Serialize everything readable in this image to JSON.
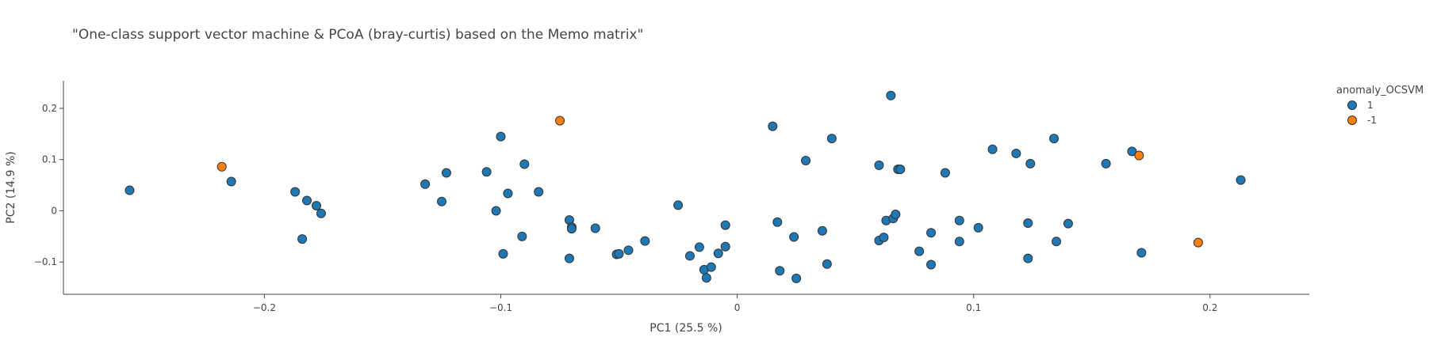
{
  "chart_data": {
    "type": "scatter",
    "title": "\"One-class support vector machine & PCoA (bray-curtis) based on the Memo matrix\"",
    "xlabel": "PC1 (25.5 %)",
    "ylabel": "PC2 (14.9 %)",
    "xlim": [
      -0.285,
      0.242
    ],
    "ylim": [
      -0.163,
      0.254
    ],
    "x_ticks": [
      -0.2,
      -0.1,
      0,
      0.1,
      0.2
    ],
    "x_tick_labels": [
      "−0.2",
      "−0.1",
      "0",
      "0.1",
      "0.2"
    ],
    "y_ticks": [
      -0.1,
      0,
      0.1,
      0.2
    ],
    "y_tick_labels": [
      "−0.1",
      "0",
      "0.1",
      "0.2"
    ],
    "grid": false,
    "legend": {
      "title": "anomaly_OCSVM",
      "position": "top-right"
    },
    "series": [
      {
        "name": "1",
        "color": "#1f77b4",
        "x": [
          -0.257,
          -0.214,
          -0.187,
          -0.182,
          -0.178,
          -0.176,
          -0.184,
          -0.132,
          -0.125,
          -0.123,
          -0.106,
          -0.102,
          -0.1,
          -0.099,
          -0.097,
          -0.091,
          -0.09,
          -0.084,
          -0.071,
          -0.07,
          -0.07,
          -0.071,
          -0.06,
          -0.051,
          -0.05,
          -0.046,
          -0.039,
          -0.025,
          -0.02,
          -0.016,
          -0.014,
          -0.013,
          -0.011,
          -0.008,
          -0.005,
          -0.005,
          0.015,
          0.017,
          0.018,
          0.024,
          0.025,
          0.029,
          0.036,
          0.038,
          0.04,
          0.06,
          0.06,
          0.062,
          0.063,
          0.065,
          0.066,
          0.067,
          0.068,
          0.069,
          0.077,
          0.082,
          0.082,
          0.088,
          0.094,
          0.094,
          0.102,
          0.108,
          0.118,
          0.123,
          0.123,
          0.124,
          0.134,
          0.135,
          0.14,
          0.156,
          0.167,
          0.171,
          0.213
        ],
        "y": [
          0.04,
          0.057,
          0.037,
          0.02,
          0.01,
          -0.005,
          -0.055,
          0.052,
          0.018,
          0.074,
          0.076,
          0.0,
          0.145,
          -0.084,
          0.034,
          -0.05,
          0.091,
          0.037,
          -0.018,
          -0.032,
          -0.035,
          -0.093,
          -0.034,
          -0.085,
          -0.084,
          -0.077,
          -0.059,
          0.011,
          -0.088,
          -0.071,
          -0.115,
          -0.131,
          -0.11,
          -0.083,
          -0.07,
          -0.028,
          0.165,
          -0.022,
          -0.117,
          -0.051,
          -0.132,
          0.098,
          -0.039,
          -0.104,
          0.141,
          0.089,
          -0.058,
          -0.052,
          -0.019,
          0.225,
          -0.015,
          -0.007,
          0.081,
          0.081,
          -0.079,
          -0.043,
          -0.105,
          0.074,
          -0.019,
          -0.06,
          -0.033,
          0.12,
          0.112,
          -0.024,
          -0.093,
          0.092,
          0.141,
          -0.06,
          -0.025,
          0.092,
          0.116,
          -0.082,
          0.06
        ]
      },
      {
        "name": "-1",
        "color": "#ff7f0e",
        "x": [
          -0.218,
          -0.075,
          0.17,
          0.195
        ],
        "y": [
          0.086,
          0.176,
          0.108,
          -0.062
        ]
      }
    ]
  }
}
